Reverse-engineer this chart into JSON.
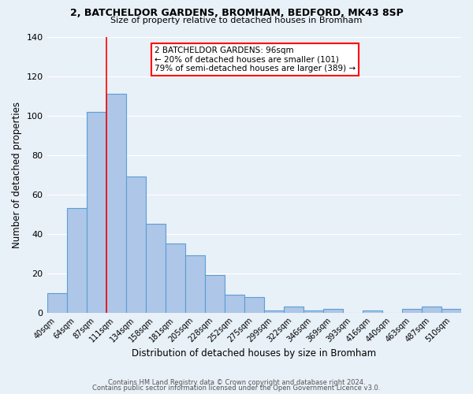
{
  "title1": "2, BATCHELDOR GARDENS, BROMHAM, BEDFORD, MK43 8SP",
  "title2": "Size of property relative to detached houses in Bromham",
  "xlabel": "Distribution of detached houses by size in Bromham",
  "ylabel": "Number of detached properties",
  "bar_labels": [
    "40sqm",
    "64sqm",
    "87sqm",
    "111sqm",
    "134sqm",
    "158sqm",
    "181sqm",
    "205sqm",
    "228sqm",
    "252sqm",
    "275sqm",
    "299sqm",
    "322sqm",
    "346sqm",
    "369sqm",
    "393sqm",
    "416sqm",
    "440sqm",
    "463sqm",
    "487sqm",
    "510sqm"
  ],
  "bar_values": [
    10,
    53,
    102,
    111,
    69,
    45,
    35,
    29,
    19,
    9,
    8,
    1,
    3,
    1,
    2,
    0,
    1,
    0,
    2,
    3,
    2
  ],
  "bar_color": "#aec6e8",
  "bar_edge_color": "#5a9fd4",
  "background_color": "#e8f0f8",
  "vline_color": "red",
  "annotation_lines": [
    "2 BATCHELDOR GARDENS: 96sqm",
    "← 20% of detached houses are smaller (101)",
    "79% of semi-detached houses are larger (389) →"
  ],
  "annotation_box_color": "white",
  "annotation_box_edge_color": "red",
  "ylim": [
    0,
    140
  ],
  "yticks": [
    0,
    20,
    40,
    60,
    80,
    100,
    120,
    140
  ],
  "footer1": "Contains HM Land Registry data © Crown copyright and database right 2024.",
  "footer2": "Contains public sector information licensed under the Open Government Licence v3.0."
}
